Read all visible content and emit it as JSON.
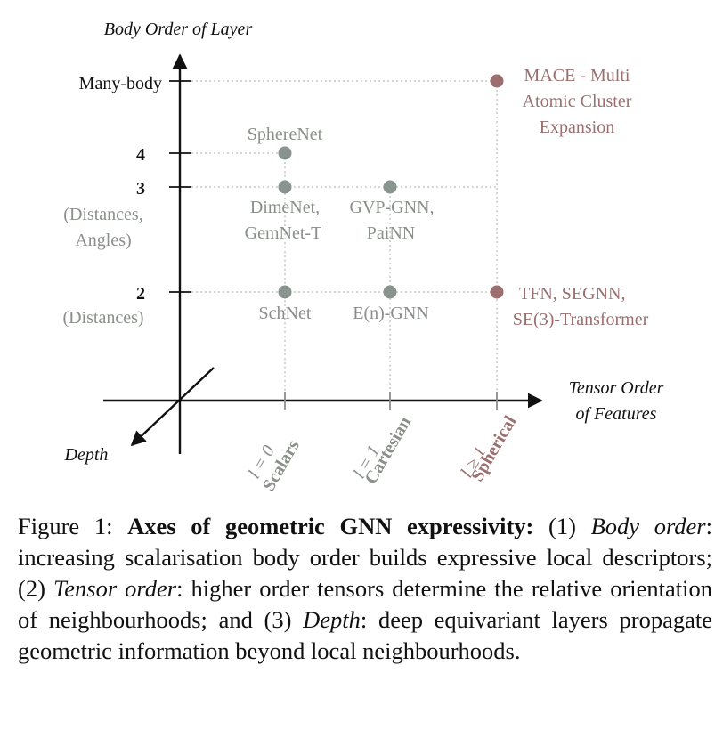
{
  "colors": {
    "axis": "#111111",
    "gray": "#8a8f8a",
    "gray_dot": "#8a948f",
    "spherical": "#9b6f6f",
    "grid": "#bbbbbb"
  },
  "axes": {
    "y_title": "Body Order of Layer",
    "x_title_line1": "Tensor Order",
    "x_title_line2": "of Features",
    "depth": "Depth"
  },
  "y_ticks": {
    "many_body": "Many-body",
    "four": "4",
    "three": "3",
    "three_note_line1": "(Distances,",
    "three_note_line2": "Angles)",
    "two": "2",
    "two_note": "(Distances)"
  },
  "x_ticks": {
    "scalars_sym": "l = 0",
    "scalars": "Scalars",
    "cartesian_sym": "l = 1",
    "cartesian": "Cartesian",
    "spherical_sym": "l ≥ 1",
    "spherical": "Spherical"
  },
  "models": {
    "spherenet": "SphereNet",
    "dimenet": "DimeNet,",
    "gemnet": "GemNet-T",
    "gvp": "GVP-GNN,",
    "painn": "PaiNN",
    "schnet": "SchNet",
    "egnn": "E(n)-GNN",
    "mace_line1": "MACE - Multi",
    "mace_line2": "Atomic Cluster",
    "mace_line3": "Expansion",
    "tfn_line1": "TFN, SEGNN,",
    "tfn_line2": "SE(3)-Transformer"
  },
  "caption": {
    "label": "Figure 1: ",
    "bold": "Axes of geometric GNN expressivity:",
    "part1": " (1) ",
    "body_order": "Body order",
    "part2": ": increasing scalarisation body order builds expressive local descriptors; (2) ",
    "tensor_order": "Tensor order",
    "part3": ": higher order tensors determine the relative orientation of neighbourhoods; and (3) ",
    "depth": "Depth",
    "part4": ": deep equivariant layers propagate geometric information beyond local neighbourhoods."
  }
}
